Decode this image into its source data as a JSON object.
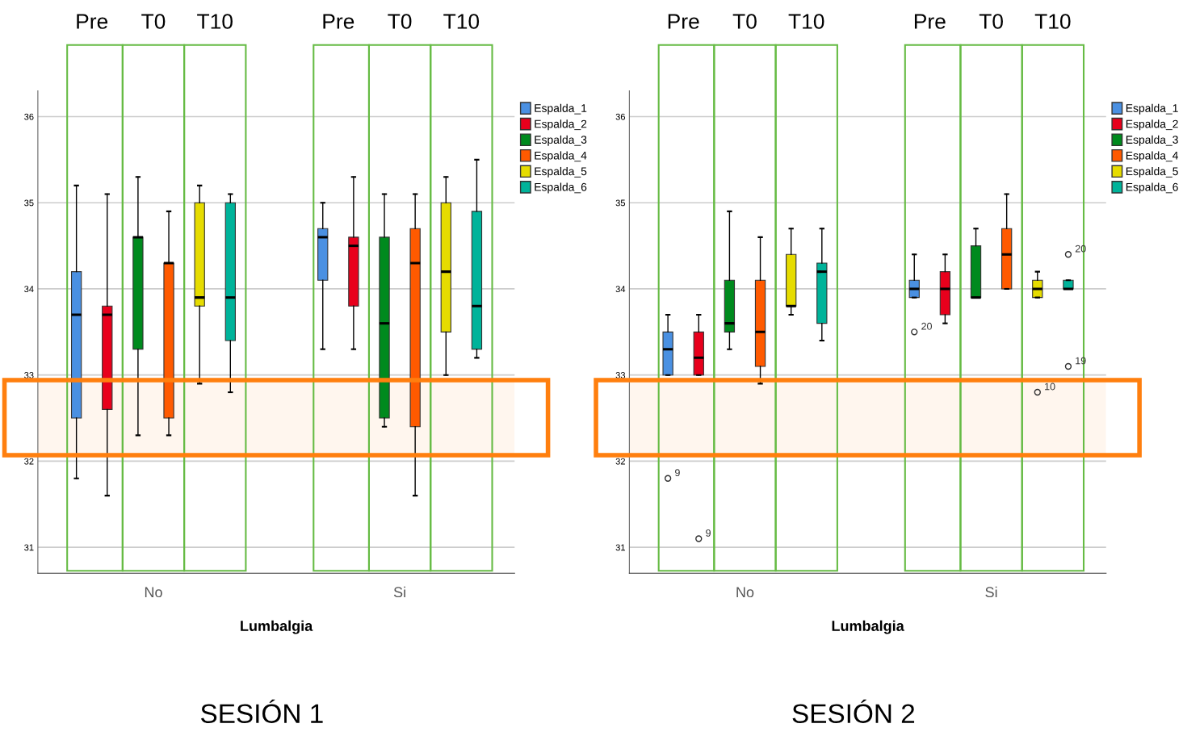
{
  "chart_data": [
    {
      "type": "box",
      "title": "SESIÓN 1",
      "xlabel": "Lumbalgia",
      "categories": [
        "No",
        "Si"
      ],
      "ylim": [
        30.7,
        36.3
      ],
      "yticks": [
        31,
        32,
        33,
        34,
        35,
        36
      ],
      "grid": "y",
      "legend": "top right",
      "bands": [
        {
          "axis": "y",
          "from": 32.07,
          "to": 32.94,
          "color": "#ff7f0e"
        }
      ],
      "annotations": [
        "Pre",
        "T0",
        "T10",
        "Pre",
        "T0",
        "T10"
      ],
      "series": [
        {
          "name": "Espalda_1",
          "color": "#4a90e2",
          "boxes": [
            {
              "low": 31.8,
              "q1": 32.5,
              "median": 33.7,
              "q3": 34.2,
              "high": 35.2
            },
            {
              "low": 33.3,
              "q1": 34.1,
              "median": 34.6,
              "q3": 34.7,
              "high": 35.0
            }
          ]
        },
        {
          "name": "Espalda_2",
          "color": "#e8001c",
          "boxes": [
            {
              "low": 31.6,
              "q1": 32.6,
              "median": 33.7,
              "q3": 33.8,
              "high": 35.1
            },
            {
              "low": 33.3,
              "q1": 33.8,
              "median": 34.5,
              "q3": 34.6,
              "high": 35.3
            }
          ]
        },
        {
          "name": "Espalda_3",
          "color": "#008a1e",
          "boxes": [
            {
              "low": 32.3,
              "q1": 33.3,
              "median": 34.6,
              "q3": 34.6,
              "high": 35.3
            },
            {
              "low": 32.4,
              "q1": 32.5,
              "median": 33.6,
              "q3": 34.6,
              "high": 35.1
            }
          ]
        },
        {
          "name": "Espalda_4",
          "color": "#ff5a00",
          "boxes": [
            {
              "low": 32.3,
              "q1": 32.5,
              "median": 34.3,
              "q3": 34.3,
              "high": 34.9
            },
            {
              "low": 31.6,
              "q1": 32.4,
              "median": 34.3,
              "q3": 34.7,
              "high": 35.1
            }
          ]
        },
        {
          "name": "Espalda_5",
          "color": "#e6dc00",
          "boxes": [
            {
              "low": 32.9,
              "q1": 33.8,
              "median": 33.9,
              "q3": 35.0,
              "high": 35.2
            },
            {
              "low": 33.0,
              "q1": 33.5,
              "median": 34.2,
              "q3": 35.0,
              "high": 35.3
            }
          ]
        },
        {
          "name": "Espalda_6",
          "color": "#00b39a",
          "boxes": [
            {
              "low": 32.8,
              "q1": 33.4,
              "median": 33.9,
              "q3": 35.0,
              "high": 35.1
            },
            {
              "low": 33.2,
              "q1": 33.3,
              "median": 33.8,
              "q3": 34.9,
              "high": 35.5
            }
          ]
        }
      ]
    },
    {
      "type": "box",
      "title": "SESIÓN 2",
      "xlabel": "Lumbalgia",
      "categories": [
        "No",
        "Si"
      ],
      "ylim": [
        30.7,
        36.3
      ],
      "yticks": [
        31,
        32,
        33,
        34,
        35,
        36
      ],
      "grid": "y",
      "legend": "top right",
      "bands": [
        {
          "axis": "y",
          "from": 32.07,
          "to": 32.94,
          "color": "#ff7f0e"
        }
      ],
      "annotations": [
        "Pre",
        "T0",
        "T10",
        "Pre",
        "T0",
        "T10",
        "9",
        "9",
        "20",
        "10",
        "20",
        "19"
      ],
      "series": [
        {
          "name": "Espalda_1",
          "color": "#4a90e2",
          "boxes": [
            {
              "low": 33.0,
              "q1": 33.0,
              "median": 33.3,
              "q3": 33.5,
              "high": 33.7,
              "outliers": [
                31.8
              ]
            },
            {
              "low": 33.9,
              "q1": 33.9,
              "median": 34.0,
              "q3": 34.1,
              "high": 34.4,
              "outliers": [
                33.5
              ]
            }
          ]
        },
        {
          "name": "Espalda_2",
          "color": "#e8001c",
          "boxes": [
            {
              "low": 33.0,
              "q1": 33.0,
              "median": 33.2,
              "q3": 33.5,
              "high": 33.7,
              "outliers": [
                31.1
              ]
            },
            {
              "low": 33.6,
              "q1": 33.7,
              "median": 34.0,
              "q3": 34.2,
              "high": 34.4
            }
          ]
        },
        {
          "name": "Espalda_3",
          "color": "#008a1e",
          "boxes": [
            {
              "low": 33.3,
              "q1": 33.5,
              "median": 33.6,
              "q3": 34.1,
              "high": 34.9
            },
            {
              "low": 33.9,
              "q1": 33.9,
              "median": 33.9,
              "q3": 34.5,
              "high": 34.7
            }
          ]
        },
        {
          "name": "Espalda_4",
          "color": "#ff5a00",
          "boxes": [
            {
              "low": 32.9,
              "q1": 33.1,
              "median": 33.5,
              "q3": 34.1,
              "high": 34.6
            },
            {
              "low": 34.0,
              "q1": 34.0,
              "median": 34.4,
              "q3": 34.7,
              "high": 35.1
            }
          ]
        },
        {
          "name": "Espalda_5",
          "color": "#e6dc00",
          "boxes": [
            {
              "low": 33.7,
              "q1": 33.8,
              "median": 33.8,
              "q3": 34.4,
              "high": 34.7
            },
            {
              "low": 33.9,
              "q1": 33.9,
              "median": 34.0,
              "q3": 34.1,
              "high": 34.2,
              "outliers": [
                32.8
              ]
            }
          ]
        },
        {
          "name": "Espalda_6",
          "color": "#00b39a",
          "boxes": [
            {
              "low": 33.4,
              "q1": 33.6,
              "median": 34.2,
              "q3": 34.3,
              "high": 34.7
            },
            {
              "low": 34.0,
              "q1": 34.0,
              "median": 34.0,
              "q3": 34.1,
              "high": 34.1,
              "outliers": [
                34.4,
                33.1
              ]
            }
          ]
        }
      ]
    }
  ]
}
